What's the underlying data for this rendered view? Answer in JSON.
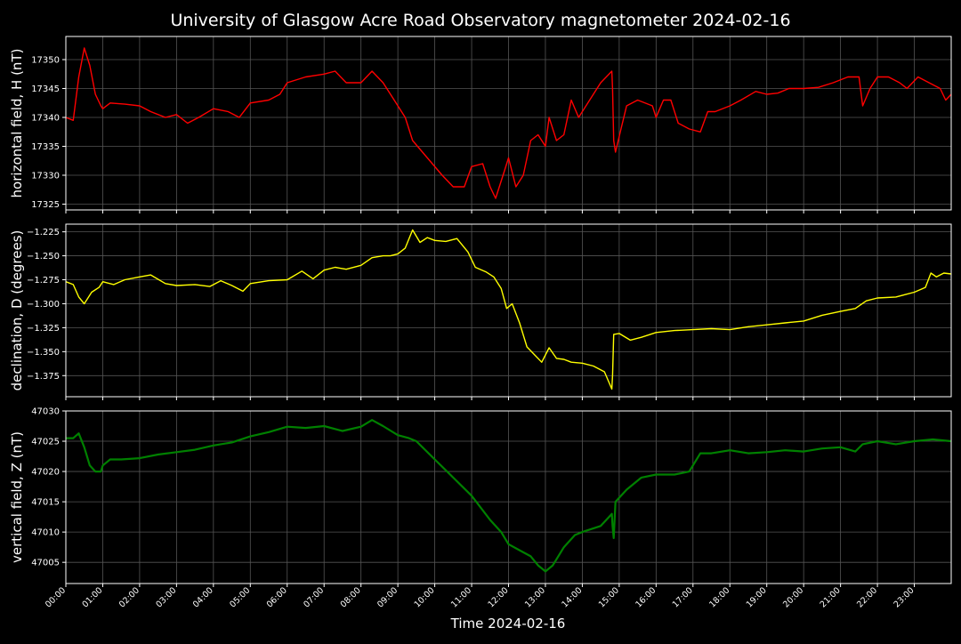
{
  "chart_data": {
    "title": "University of Glasgow Acre Road Observatory magnetometer 2024-02-16",
    "xlabel": "Time 2024-02-16",
    "x_ticks": [
      "00:00",
      "01:00",
      "02:00",
      "03:00",
      "04:00",
      "05:00",
      "06:00",
      "07:00",
      "08:00",
      "09:00",
      "10:00",
      "11:00",
      "12:00",
      "13:00",
      "14:00",
      "15:00",
      "16:00",
      "17:00",
      "18:00",
      "19:00",
      "20:00",
      "21:00",
      "22:00",
      "23:00"
    ],
    "x_range_hours": [
      0,
      24
    ],
    "grid": true,
    "panels": [
      {
        "type": "line",
        "ylabel": "horizontal field, H (nT)",
        "color": "#ff0000",
        "ylim": [
          17324,
          17354
        ],
        "yticks": [
          17325,
          17330,
          17335,
          17340,
          17345,
          17350
        ],
        "ytick_labels": [
          "17325",
          "17330",
          "17335",
          "17340",
          "17345",
          "17350"
        ],
        "points": [
          [
            0,
            17340
          ],
          [
            0.2,
            17339.5
          ],
          [
            0.35,
            17347
          ],
          [
            0.5,
            17352
          ],
          [
            0.65,
            17349
          ],
          [
            0.8,
            17344
          ],
          [
            0.95,
            17342
          ],
          [
            1.0,
            17341.5
          ],
          [
            1.2,
            17342.5
          ],
          [
            1.6,
            17342.3
          ],
          [
            2.0,
            17342
          ],
          [
            2.3,
            17341
          ],
          [
            2.7,
            17340
          ],
          [
            3.0,
            17340.5
          ],
          [
            3.3,
            17339
          ],
          [
            3.6,
            17340
          ],
          [
            4.0,
            17341.5
          ],
          [
            4.4,
            17341
          ],
          [
            4.7,
            17340
          ],
          [
            5.0,
            17342.5
          ],
          [
            5.5,
            17343
          ],
          [
            5.8,
            17344
          ],
          [
            6.0,
            17346
          ],
          [
            6.5,
            17347
          ],
          [
            7.0,
            17347.5
          ],
          [
            7.3,
            17348
          ],
          [
            7.6,
            17346
          ],
          [
            8.0,
            17346
          ],
          [
            8.3,
            17348
          ],
          [
            8.6,
            17346
          ],
          [
            8.9,
            17343
          ],
          [
            9.2,
            17340
          ],
          [
            9.4,
            17336
          ],
          [
            9.8,
            17333
          ],
          [
            10.2,
            17330
          ],
          [
            10.5,
            17328
          ],
          [
            10.8,
            17328
          ],
          [
            11.0,
            17331.5
          ],
          [
            11.3,
            17332
          ],
          [
            11.5,
            17328
          ],
          [
            11.65,
            17326
          ],
          [
            11.9,
            17331
          ],
          [
            12.0,
            17333
          ],
          [
            12.2,
            17328
          ],
          [
            12.4,
            17330
          ],
          [
            12.6,
            17336
          ],
          [
            12.8,
            17337
          ],
          [
            13.0,
            17335
          ],
          [
            13.1,
            17340
          ],
          [
            13.3,
            17336
          ],
          [
            13.5,
            17337
          ],
          [
            13.7,
            17343
          ],
          [
            13.9,
            17340
          ],
          [
            14.2,
            17343
          ],
          [
            14.5,
            17346
          ],
          [
            14.8,
            17348
          ],
          [
            14.82,
            17345
          ],
          [
            14.85,
            17336
          ],
          [
            14.9,
            17334
          ],
          [
            15.05,
            17338
          ],
          [
            15.2,
            17342
          ],
          [
            15.5,
            17343
          ],
          [
            15.9,
            17342
          ],
          [
            16.0,
            17340
          ],
          [
            16.2,
            17343
          ],
          [
            16.4,
            17343
          ],
          [
            16.6,
            17339
          ],
          [
            16.9,
            17338
          ],
          [
            17.2,
            17337.5
          ],
          [
            17.4,
            17341
          ],
          [
            17.6,
            17341
          ],
          [
            18.0,
            17342
          ],
          [
            18.3,
            17343
          ],
          [
            18.7,
            17344.5
          ],
          [
            19.0,
            17344
          ],
          [
            19.3,
            17344.2
          ],
          [
            19.6,
            17345
          ],
          [
            20.0,
            17345
          ],
          [
            20.4,
            17345.2
          ],
          [
            20.8,
            17346
          ],
          [
            21.2,
            17347
          ],
          [
            21.5,
            17347
          ],
          [
            21.6,
            17342
          ],
          [
            21.8,
            17345
          ],
          [
            22.0,
            17347
          ],
          [
            22.3,
            17347
          ],
          [
            22.6,
            17346
          ],
          [
            22.8,
            17345
          ],
          [
            23.1,
            17347
          ],
          [
            23.4,
            17346
          ],
          [
            23.7,
            17345
          ],
          [
            23.85,
            17343
          ],
          [
            24.0,
            17344
          ]
        ]
      },
      {
        "type": "line",
        "ylabel": "declination, D (degrees)",
        "color": "#ffff00",
        "ylim": [
          -1.397,
          -1.217
        ],
        "yticks": [
          -1.375,
          -1.35,
          -1.325,
          -1.3,
          -1.275,
          -1.25,
          -1.225
        ],
        "ytick_labels": [
          "−1.375",
          "−1.350",
          "−1.325",
          "−1.300",
          "−1.275",
          "−1.250",
          "−1.225"
        ],
        "points": [
          [
            0,
            -1.277
          ],
          [
            0.2,
            -1.28
          ],
          [
            0.35,
            -1.293
          ],
          [
            0.5,
            -1.3
          ],
          [
            0.7,
            -1.288
          ],
          [
            0.9,
            -1.283
          ],
          [
            1.0,
            -1.277
          ],
          [
            1.3,
            -1.28
          ],
          [
            1.6,
            -1.275
          ],
          [
            2.0,
            -1.272
          ],
          [
            2.3,
            -1.27
          ],
          [
            2.7,
            -1.279
          ],
          [
            3.0,
            -1.281
          ],
          [
            3.5,
            -1.28
          ],
          [
            3.9,
            -1.282
          ],
          [
            4.2,
            -1.276
          ],
          [
            4.5,
            -1.281
          ],
          [
            4.8,
            -1.287
          ],
          [
            5.0,
            -1.279
          ],
          [
            5.5,
            -1.276
          ],
          [
            6.0,
            -1.275
          ],
          [
            6.4,
            -1.266
          ],
          [
            6.7,
            -1.274
          ],
          [
            7.0,
            -1.265
          ],
          [
            7.3,
            -1.262
          ],
          [
            7.6,
            -1.264
          ],
          [
            8.0,
            -1.26
          ],
          [
            8.3,
            -1.252
          ],
          [
            8.6,
            -1.25
          ],
          [
            8.8,
            -1.25
          ],
          [
            9.0,
            -1.248
          ],
          [
            9.2,
            -1.242
          ],
          [
            9.4,
            -1.223
          ],
          [
            9.6,
            -1.236
          ],
          [
            9.8,
            -1.231
          ],
          [
            10.0,
            -1.234
          ],
          [
            10.3,
            -1.235
          ],
          [
            10.6,
            -1.232
          ],
          [
            10.9,
            -1.246
          ],
          [
            11.1,
            -1.262
          ],
          [
            11.4,
            -1.267
          ],
          [
            11.6,
            -1.272
          ],
          [
            11.8,
            -1.284
          ],
          [
            11.95,
            -1.305
          ],
          [
            12.1,
            -1.3
          ],
          [
            12.3,
            -1.32
          ],
          [
            12.5,
            -1.345
          ],
          [
            12.7,
            -1.353
          ],
          [
            12.9,
            -1.361
          ],
          [
            13.1,
            -1.346
          ],
          [
            13.3,
            -1.357
          ],
          [
            13.5,
            -1.358
          ],
          [
            13.7,
            -1.361
          ],
          [
            14.0,
            -1.362
          ],
          [
            14.3,
            -1.365
          ],
          [
            14.6,
            -1.371
          ],
          [
            14.8,
            -1.389
          ],
          [
            14.82,
            -1.375
          ],
          [
            14.85,
            -1.332
          ],
          [
            15.0,
            -1.331
          ],
          [
            15.3,
            -1.338
          ],
          [
            15.6,
            -1.335
          ],
          [
            16.0,
            -1.33
          ],
          [
            16.5,
            -1.328
          ],
          [
            17.0,
            -1.327
          ],
          [
            17.5,
            -1.326
          ],
          [
            18.0,
            -1.327
          ],
          [
            18.5,
            -1.324
          ],
          [
            19.0,
            -1.322
          ],
          [
            19.5,
            -1.32
          ],
          [
            20.0,
            -1.318
          ],
          [
            20.5,
            -1.312
          ],
          [
            21.0,
            -1.308
          ],
          [
            21.4,
            -1.305
          ],
          [
            21.7,
            -1.297
          ],
          [
            22.0,
            -1.294
          ],
          [
            22.5,
            -1.293
          ],
          [
            23.0,
            -1.288
          ],
          [
            23.3,
            -1.283
          ],
          [
            23.45,
            -1.268
          ],
          [
            23.6,
            -1.272
          ],
          [
            23.8,
            -1.268
          ],
          [
            24.0,
            -1.269
          ]
        ]
      },
      {
        "type": "line",
        "ylabel": "vertical field, Z (nT)",
        "color": "#008000",
        "ylim": [
          47001.5,
          47030
        ],
        "yticks": [
          47005,
          47010,
          47015,
          47020,
          47025,
          47030
        ],
        "ytick_labels": [
          "47005",
          "47010",
          "47015",
          "47020",
          "47025",
          "47030"
        ],
        "points": [
          [
            0,
            47025.5
          ],
          [
            0.2,
            47025.5
          ],
          [
            0.35,
            47026.3
          ],
          [
            0.5,
            47024
          ],
          [
            0.65,
            47021
          ],
          [
            0.8,
            47020
          ],
          [
            0.95,
            47020
          ],
          [
            1.0,
            47021
          ],
          [
            1.2,
            47022
          ],
          [
            1.5,
            47022
          ],
          [
            2.0,
            47022.2
          ],
          [
            2.5,
            47022.8
          ],
          [
            3.0,
            47023.2
          ],
          [
            3.5,
            47023.6
          ],
          [
            4.0,
            47024.3
          ],
          [
            4.5,
            47024.8
          ],
          [
            5.0,
            47025.8
          ],
          [
            5.5,
            47026.5
          ],
          [
            6.0,
            47027.4
          ],
          [
            6.5,
            47027.2
          ],
          [
            7.0,
            47027.5
          ],
          [
            7.5,
            47026.7
          ],
          [
            8.0,
            47027.4
          ],
          [
            8.3,
            47028.5
          ],
          [
            8.6,
            47027.5
          ],
          [
            9.0,
            47026
          ],
          [
            9.3,
            47025.5
          ],
          [
            9.5,
            47025
          ],
          [
            10.0,
            47022
          ],
          [
            10.5,
            47019
          ],
          [
            11.0,
            47016
          ],
          [
            11.5,
            47012
          ],
          [
            11.8,
            47010
          ],
          [
            12.0,
            47008
          ],
          [
            12.3,
            47007
          ],
          [
            12.6,
            47006
          ],
          [
            12.8,
            47004.5
          ],
          [
            13.0,
            47003.5
          ],
          [
            13.2,
            47004.5
          ],
          [
            13.5,
            47007.5
          ],
          [
            13.8,
            47009.5
          ],
          [
            14.0,
            47010
          ],
          [
            14.5,
            47011
          ],
          [
            14.8,
            47013
          ],
          [
            14.82,
            47011
          ],
          [
            14.85,
            47009
          ],
          [
            14.9,
            47015
          ],
          [
            15.2,
            47017
          ],
          [
            15.6,
            47019
          ],
          [
            16.0,
            47019.5
          ],
          [
            16.5,
            47019.5
          ],
          [
            16.9,
            47020
          ],
          [
            17.2,
            47023
          ],
          [
            17.5,
            47023
          ],
          [
            18.0,
            47023.5
          ],
          [
            18.5,
            47023
          ],
          [
            19.0,
            47023.2
          ],
          [
            19.5,
            47023.5
          ],
          [
            20.0,
            47023.3
          ],
          [
            20.5,
            47023.8
          ],
          [
            21.0,
            47024
          ],
          [
            21.4,
            47023.3
          ],
          [
            21.6,
            47024.5
          ],
          [
            22.0,
            47025
          ],
          [
            22.5,
            47024.5
          ],
          [
            23.0,
            47025
          ],
          [
            23.5,
            47025.3
          ],
          [
            24.0,
            47025
          ]
        ]
      }
    ]
  }
}
